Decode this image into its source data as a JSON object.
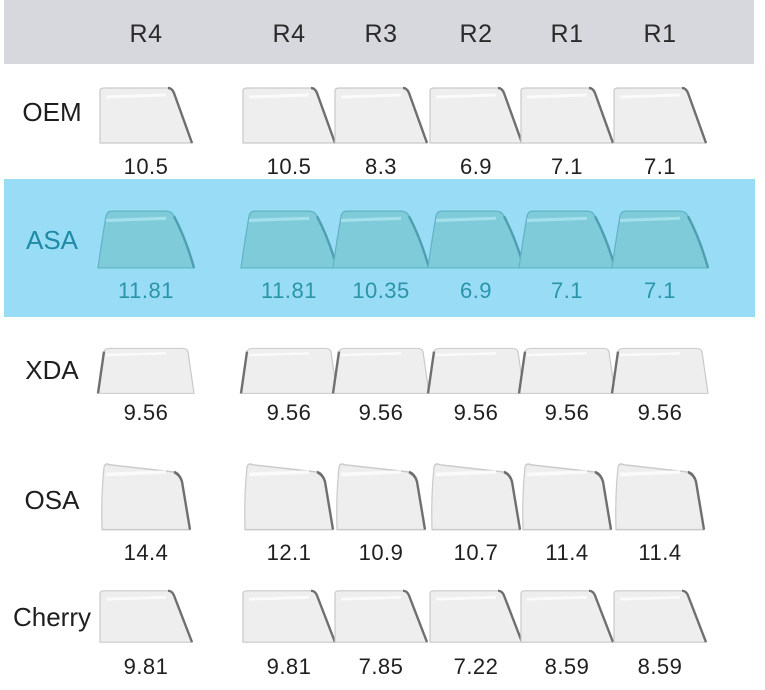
{
  "columns": [
    "R4",
    "R4",
    "R3",
    "R2",
    "R1",
    "R1"
  ],
  "highlight_color": "#99dcf6",
  "profiles": [
    {
      "name": "OEM",
      "heights": [
        "10.5",
        "10.5",
        "8.3",
        "6.9",
        "7.1",
        "7.1"
      ],
      "highlighted": false
    },
    {
      "name": "ASA",
      "heights": [
        "11.81",
        "11.81",
        "10.35",
        "6.9",
        "7.1",
        "7.1"
      ],
      "highlighted": true
    },
    {
      "name": "XDA",
      "heights": [
        "9.56",
        "9.56",
        "9.56",
        "9.56",
        "9.56",
        "9.56"
      ],
      "highlighted": false
    },
    {
      "name": "OSA",
      "heights": [
        "14.4",
        "12.1",
        "10.9",
        "10.7",
        "11.4",
        "11.4"
      ],
      "highlighted": false
    },
    {
      "name": "Cherry",
      "heights": [
        "9.81",
        "9.81",
        "7.85",
        "7.22",
        "8.59",
        "8.59"
      ],
      "highlighted": false
    }
  ]
}
